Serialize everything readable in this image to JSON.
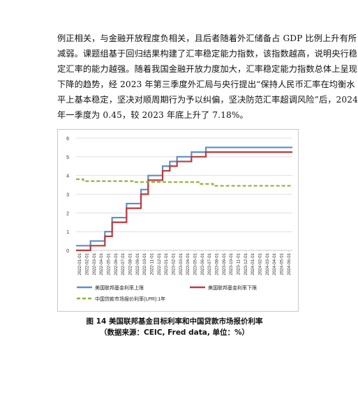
{
  "document": {
    "paragraph_lines": [
      "例正相关，与金融开放程度负相关，且后者随着外汇储备占 GDP 比例上升有所",
      "减弱。课题组基于回归结果构建了汇率稳定能力指数，该指数越高，说明央行稳",
      "定汇率的能力越强。随着我国金融开放力度加大，汇率稳定能力指数总体上呈现",
      "下降的趋势，经 2023 年第三季度外汇局与央行提出“保持人民币汇率在均衡水",
      "平上基本稳定，坚决对顺周期行为予以纠偏，坚决防范汇率超调风险”后，2024",
      "年一季度为 0.45，较 2023 年底上升了 7.18%。"
    ],
    "figure_caption": "图 14 美国联邦基金目标利率和中国贷款市场报价利率",
    "figure_source": "（数据来源：CEIC, Fred data, 单位：%）"
  },
  "chart_data": {
    "type": "line",
    "x": [
      "2022-01-01",
      "2022-02-01",
      "2022-03-01",
      "2022-04-01",
      "2022-05-01",
      "2022-06-01",
      "2022-07-01",
      "2022-08-01",
      "2022-09-01",
      "2022-10-01",
      "2022-11-01",
      "2022-12-01",
      "2023-01-01",
      "2023-02-01",
      "2023-03-01",
      "2023-04-01",
      "2023-05-01",
      "2023-06-01",
      "2023-07-01",
      "2023-08-01",
      "2023-09-01",
      "2023-10-01",
      "2023-11-01",
      "2023-12-01",
      "2024-01-01",
      "2024-02-01",
      "2024-03-01",
      "2024-04-01",
      "2024-05-01",
      "2024-06-01"
    ],
    "ylim": [
      0,
      6
    ],
    "yticks": [
      0,
      1,
      2,
      3,
      4,
      5,
      6
    ],
    "grid": true,
    "legend_position": "bottom",
    "series": [
      {
        "name": "美国联邦基金利率上限",
        "color": "#5b8fc9",
        "style": "solid",
        "step": true,
        "values": [
          0.25,
          0.25,
          0.5,
          0.5,
          1.0,
          1.75,
          1.75,
          2.5,
          2.5,
          3.25,
          4.0,
          4.0,
          4.5,
          4.75,
          5.0,
          5.0,
          5.25,
          5.25,
          5.5,
          5.5,
          5.5,
          5.5,
          5.5,
          5.5,
          5.5,
          5.5,
          5.5,
          5.5,
          5.5,
          5.5
        ]
      },
      {
        "name": "美国联邦基金利率下限",
        "color": "#c0393b",
        "style": "solid",
        "step": true,
        "values": [
          0.0,
          0.0,
          0.25,
          0.25,
          0.75,
          1.5,
          1.5,
          2.25,
          2.25,
          3.0,
          3.75,
          3.75,
          4.25,
          4.5,
          4.75,
          4.75,
          5.0,
          5.0,
          5.25,
          5.25,
          5.25,
          5.25,
          5.25,
          5.25,
          5.25,
          5.25,
          5.25,
          5.25,
          5.25,
          5.25
        ]
      },
      {
        "name": "中国贷款市场报价利率(LPR):1年",
        "color": "#8ab733",
        "style": "dashed",
        "step": true,
        "values": [
          3.8,
          3.7,
          3.7,
          3.7,
          3.7,
          3.7,
          3.7,
          3.7,
          3.65,
          3.65,
          3.65,
          3.65,
          3.65,
          3.65,
          3.65,
          3.65,
          3.65,
          3.55,
          3.55,
          3.45,
          3.45,
          3.45,
          3.45,
          3.45,
          3.45,
          3.45,
          3.45,
          3.45,
          3.45,
          3.45
        ]
      }
    ]
  }
}
